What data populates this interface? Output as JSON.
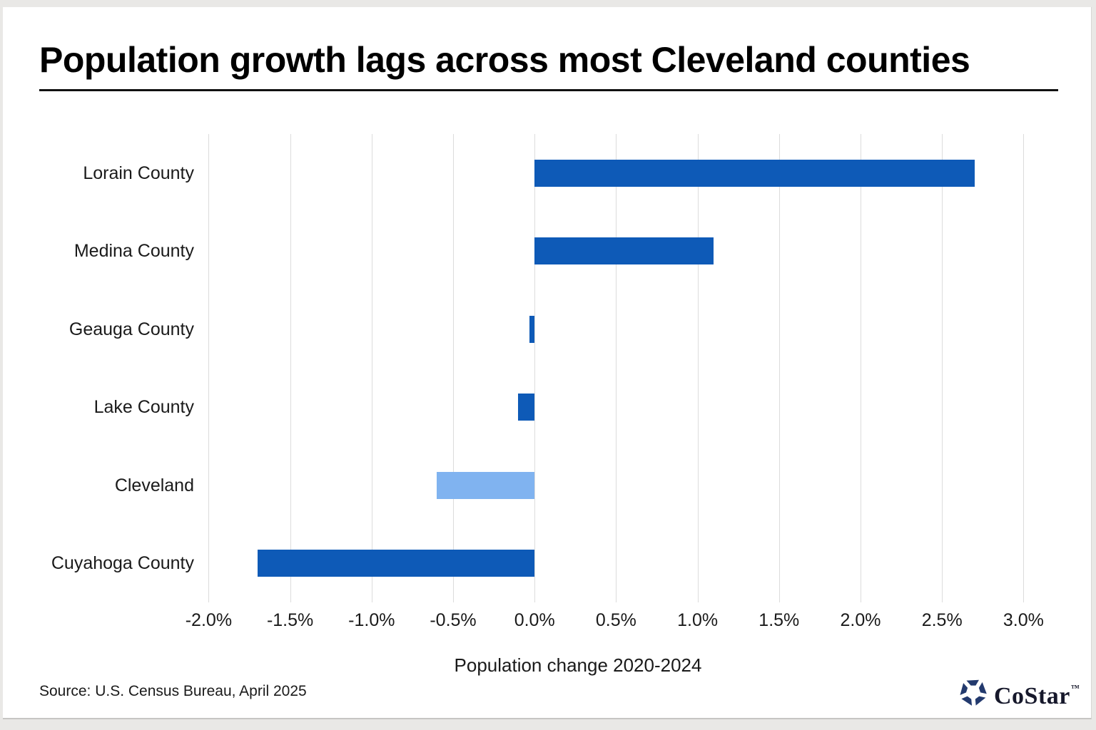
{
  "title": "Population growth lags across most Cleveland counties",
  "source": "Source: U.S. Census Bureau, April 2025",
  "logo": {
    "brand": "CoStar",
    "trademark": "™",
    "icon": "costar-pinwheel-icon",
    "icon_color": "#233a6e"
  },
  "colors": {
    "bar_primary": "#0e5ab7",
    "bar_highlight": "#80b3f0",
    "gridline": "#dcdcdc",
    "text": "#1a1a1a",
    "frame": "#e9e8e6"
  },
  "chart_data": {
    "type": "bar",
    "orientation": "horizontal",
    "title": "Population growth lags across most Cleveland counties",
    "categories": [
      "Lorain County",
      "Medina County",
      "Geauga County",
      "Lake County",
      "Cleveland",
      "Cuyahoga County"
    ],
    "values": [
      2.7,
      1.1,
      -0.03,
      -0.1,
      -0.6,
      -1.7
    ],
    "unit": "%",
    "xlabel": "Population change 2020-2024",
    "ylabel": "",
    "xlim": [
      -2.0,
      3.0
    ],
    "x_ticks": [
      "-2.0%",
      "-1.5%",
      "-1.0%",
      "-0.5%",
      "0.0%",
      "0.5%",
      "1.0%",
      "1.5%",
      "2.0%",
      "2.5%",
      "3.0%"
    ],
    "grid": "vertical",
    "legend": "none",
    "highlight_category": "Cleveland"
  }
}
